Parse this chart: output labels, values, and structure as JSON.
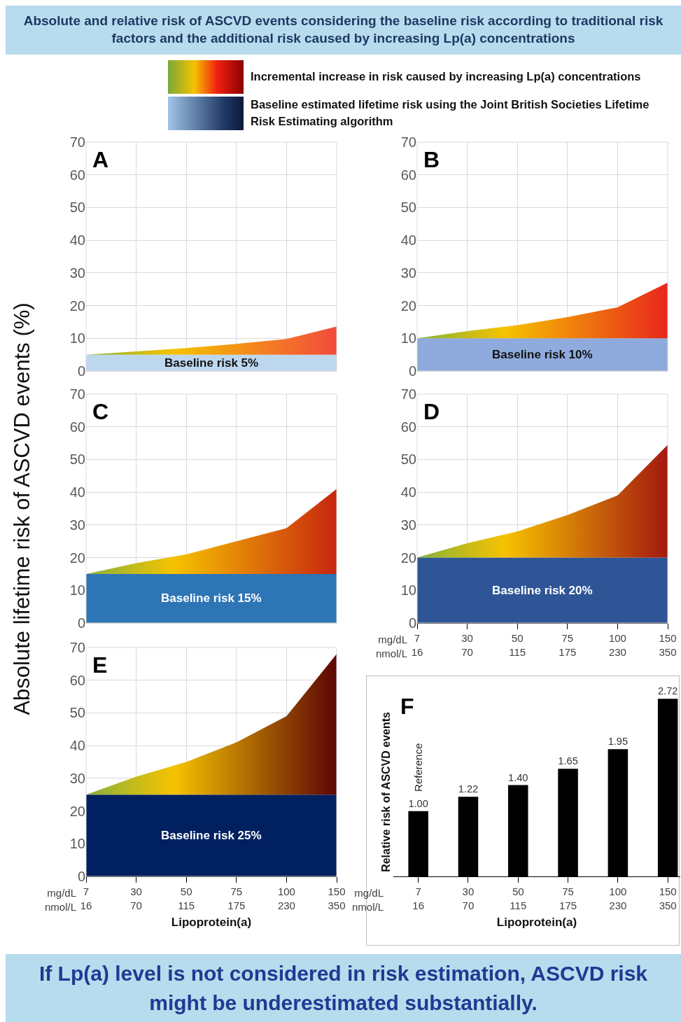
{
  "chart_data": [
    {
      "type": "other",
      "title": "Absolute and relative risk of ASCVD events considering the baseline risk according to traditional risk factors and the additional risk caused by increasing Lp(a) concentrations",
      "annotations": [
        "Incremental increase in risk caused by increasing Lp(a) concentrations",
        "Baseline estimated lifetime risk using the Joint British Societies Lifetime Risk Estimating algorithm",
        "If Lp(a) level is not considered in risk estimation, ASCVD risk might be underestimated substantially."
      ]
    },
    {
      "type": "area",
      "title": "A",
      "categories": [
        "7\n16",
        "30\n70",
        "50\n115",
        "75\n175",
        "100\n230",
        "150\n350"
      ],
      "stacked": true,
      "series": [
        {
          "name": "Baseline risk 5%",
          "color": "#bdd7ee",
          "values": [
            5,
            5,
            5,
            5,
            5,
            5
          ]
        },
        {
          "color": "#f24a3c",
          "values": [
            0,
            1,
            2,
            3.3,
            4.8,
            8.6
          ]
        }
      ],
      "ylim": [
        0,
        70
      ],
      "yticks": [
        0,
        10,
        20,
        30,
        40,
        50,
        60,
        70
      ],
      "grid": true,
      "tick_labels": "y"
    },
    {
      "type": "area",
      "title": "B",
      "categories": [
        "7\n16",
        "30\n70",
        "50\n115",
        "75\n175",
        "100\n230",
        "150\n350"
      ],
      "stacked": true,
      "series": [
        {
          "name": "Baseline risk 10%",
          "color": "#8faadc",
          "values": [
            10,
            10,
            10,
            10,
            10,
            10
          ]
        },
        {
          "color": "#e8261c",
          "values": [
            0,
            2.2,
            4,
            6.5,
            9.5,
            17
          ]
        }
      ],
      "ylim": [
        0,
        70
      ],
      "yticks": [
        0,
        10,
        20,
        30,
        40,
        50,
        60,
        70
      ],
      "grid": true,
      "tick_labels": "y"
    },
    {
      "type": "area",
      "title": "C",
      "ylabel": "Absolute lifetime risk of ASCVD events (%)",
      "categories": [
        "7\n16",
        "30\n70",
        "50\n115",
        "75\n175",
        "100\n230",
        "150\n350"
      ],
      "stacked": true,
      "series": [
        {
          "name": "Baseline risk 15%",
          "color": "#2e75b6",
          "values": [
            15,
            15,
            15,
            15,
            15,
            15
          ]
        },
        {
          "color": "#c8260f",
          "values": [
            0,
            3.3,
            6,
            10,
            14,
            26
          ]
        }
      ],
      "ylim": [
        0,
        70
      ],
      "yticks": [
        0,
        10,
        20,
        30,
        40,
        50,
        60,
        70
      ],
      "grid": true,
      "tick_labels": "y"
    },
    {
      "type": "area",
      "title": "D",
      "categories": [
        "7\n16",
        "30\n70",
        "50\n115",
        "75\n175",
        "100\n230",
        "150\n350"
      ],
      "stacked": true,
      "series": [
        {
          "name": "Baseline risk 20%",
          "color": "#2f5597",
          "values": [
            20,
            20,
            20,
            20,
            20,
            20
          ]
        },
        {
          "color": "#a3180f",
          "values": [
            0,
            4.4,
            8,
            13,
            19,
            34.5
          ]
        }
      ],
      "ylim": [
        0,
        70
      ],
      "yticks": [
        0,
        10,
        20,
        30,
        40,
        50,
        60,
        70
      ],
      "grid": true,
      "annotations": [
        "mg/dL\nnmol/L"
      ]
    },
    {
      "type": "area",
      "title": "E",
      "xlabel": "Lipoprotein(a)",
      "categories": [
        "7\n16",
        "30\n70",
        "50\n115",
        "75\n175",
        "100\n230",
        "150\n350"
      ],
      "stacked": true,
      "series": [
        {
          "name": "Baseline risk 25%",
          "color": "#002060",
          "values": [
            25,
            25,
            25,
            25,
            25,
            25
          ]
        },
        {
          "color": "#5c0505",
          "values": [
            0,
            5.5,
            10,
            16,
            24,
            43
          ]
        }
      ],
      "ylim": [
        0,
        70
      ],
      "yticks": [
        0,
        10,
        20,
        30,
        40,
        50,
        60,
        70
      ],
      "grid": true,
      "annotations": [
        "mg/dL\nnmol/L"
      ]
    },
    {
      "type": "bar",
      "title": "F",
      "xlabel": "Lipoprotein(a)",
      "ylabel": "Relative risk of ASCVD events",
      "categories": [
        "7\n16",
        "30\n70",
        "50\n115",
        "75\n175",
        "100\n230",
        "150\n350"
      ],
      "values": [
        1.0,
        1.22,
        1.4,
        1.65,
        1.95,
        2.72
      ],
      "value_labels": [
        "1.00",
        "1.22",
        "1.40",
        "1.65",
        "1.95",
        "2.72"
      ],
      "color": "#000000",
      "tick_labels": "x",
      "annotations": [
        "mg/dL\nnmol/L",
        {
          "text": "Reference",
          "x": "7\n16",
          "y": 1.0
        }
      ]
    }
  ]
}
